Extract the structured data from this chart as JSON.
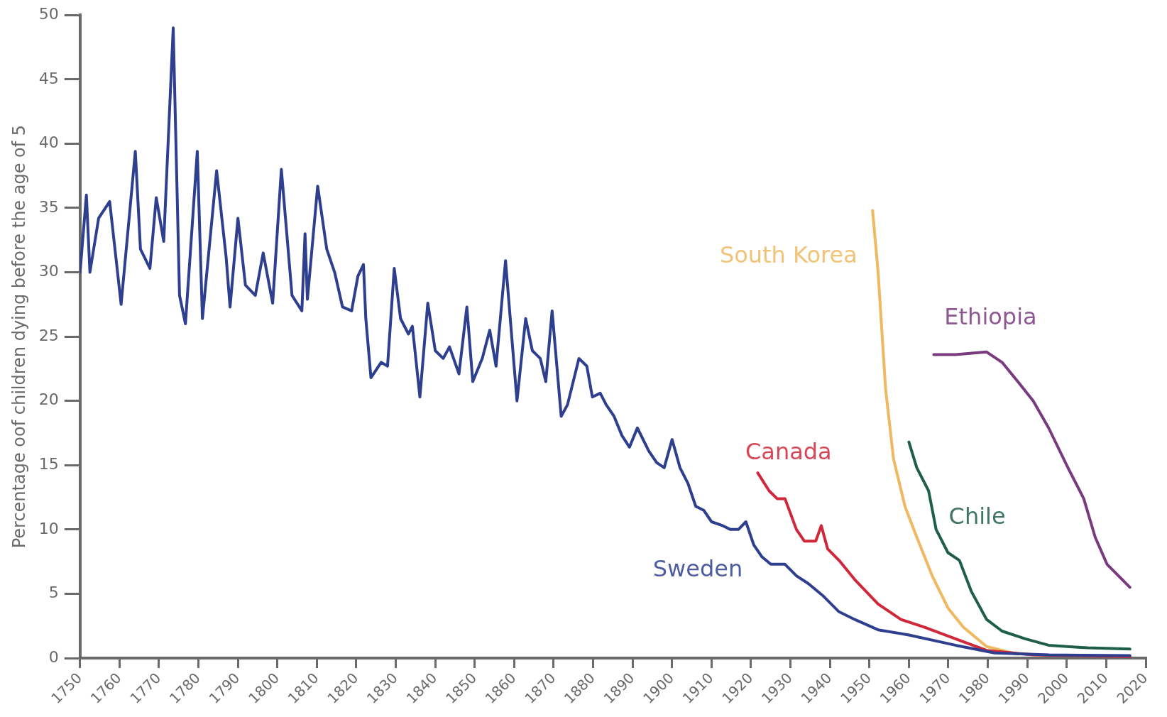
{
  "chart_data": {
    "type": "line",
    "ylabel": "Percentage oof children dying before the age of 5",
    "xlim": [
      1750,
      2020
    ],
    "xticks": [
      1750,
      1760,
      1770,
      1780,
      1790,
      1800,
      1810,
      1820,
      1830,
      1840,
      1850,
      1860,
      1870,
      1880,
      1890,
      1900,
      1910,
      1920,
      1930,
      1940,
      1950,
      1960,
      1970,
      1980,
      1990,
      2000,
      2010,
      2020
    ],
    "ylim": [
      0,
      50
    ],
    "yticks": [
      0,
      5,
      10,
      15,
      20,
      25,
      30,
      35,
      40,
      45,
      50
    ],
    "grid": false,
    "legend": false,
    "marker": "none",
    "line_style": "solid",
    "series": [
      {
        "name": "Sweden",
        "color": "#2e3f8f",
        "x": [
          1750,
          1751.6,
          1752.5,
          1754.7,
          1757.5,
          1760.4,
          1764,
          1765.3,
          1767.7,
          1769.3,
          1771.2,
          1773.6,
          1775.2,
          1776.7,
          1779.7,
          1781,
          1784.6,
          1787,
          1788,
          1790,
          1791.9,
          1794.4,
          1796.4,
          1798.8,
          1801,
          1803.7,
          1806.2,
          1807,
          1807.6,
          1810.2,
          1812.5,
          1814.5,
          1816.5,
          1818.8,
          1820.4,
          1821.8,
          1822.4,
          1823.7,
          1826.3,
          1827.9,
          1829.6,
          1831.2,
          1833.2,
          1834.2,
          1836.1,
          1838.1,
          1840,
          1842,
          1843.6,
          1846,
          1848,
          1849.5,
          1851.9,
          1853.8,
          1855.4,
          1857.8,
          1860.7,
          1862.9,
          1864.6,
          1866.6,
          1868,
          1869.6,
          1871.9,
          1873.5,
          1876.4,
          1878.4,
          1879.8,
          1881.8,
          1883.3,
          1885.3,
          1887.3,
          1889.2,
          1891.2,
          1894.1,
          1896.1,
          1898,
          1900,
          1902,
          1904,
          1906,
          1908,
          1910,
          1912.8,
          1914.8,
          1916.8,
          1918.7,
          1920.7,
          1922.7,
          1925,
          1928.6,
          1931.5,
          1934.5,
          1938.4,
          1942.3,
          1946.3,
          1952.2,
          1960,
          1971.8,
          1981.7,
          1995.4,
          2016
        ],
        "values": [
          30,
          36,
          30,
          34.2,
          35.5,
          27.5,
          39.4,
          31.8,
          30.3,
          35.8,
          32.4,
          49,
          28.2,
          26,
          39.4,
          26.4,
          37.9,
          31.2,
          27.3,
          34.2,
          29,
          28.2,
          31.5,
          27.6,
          38,
          28.2,
          27,
          33,
          27.9,
          36.7,
          31.8,
          30,
          27.3,
          27,
          29.7,
          30.6,
          26.4,
          21.8,
          23,
          22.7,
          30.3,
          26.4,
          25.2,
          25.8,
          20.3,
          27.6,
          23.9,
          23.3,
          24.2,
          22.1,
          27.3,
          21.5,
          23.3,
          25.5,
          22.7,
          30.9,
          20,
          26.4,
          23.9,
          23.3,
          21.5,
          27,
          18.8,
          19.7,
          23.3,
          22.7,
          20.3,
          20.6,
          19.7,
          18.8,
          17.3,
          16.4,
          17.9,
          16.1,
          15.2,
          14.8,
          17,
          14.8,
          13.6,
          11.8,
          11.5,
          10.6,
          10.3,
          10,
          10,
          10.6,
          8.8,
          7.9,
          7.3,
          7.3,
          6.4,
          5.8,
          4.8,
          3.6,
          3,
          2.2,
          1.8,
          1,
          0.4,
          0.25,
          0.2
        ]
      },
      {
        "name": "Canada",
        "color": "#d0283a",
        "x": [
          1921.7,
          1924.6,
          1926.6,
          1928.6,
          1931.5,
          1933.5,
          1936.4,
          1937.8,
          1939.4,
          1942.3,
          1946.3,
          1952.2,
          1958,
          1964,
          1971.8,
          1979.7,
          1991.5,
          2016
        ],
        "values": [
          14.4,
          13,
          12.4,
          12.4,
          10,
          9.1,
          9.1,
          10.3,
          8.5,
          7.6,
          6.1,
          4.2,
          3,
          2.4,
          1.5,
          0.6,
          0.25,
          0.12
        ]
      },
      {
        "name": "South Korea",
        "color": "#f0b860",
        "x": [
          1950.8,
          1952.2,
          1954.1,
          1956.1,
          1959,
          1962,
          1965.9,
          1969.9,
          1973.8,
          1979.7,
          1987.6
        ],
        "values": [
          34.8,
          30,
          20.9,
          15.5,
          11.8,
          9.4,
          6.4,
          3.9,
          2.4,
          0.9,
          0.3
        ]
      },
      {
        "name": "Chile",
        "color": "#1f5e48",
        "x": [
          1960,
          1962,
          1965,
          1966.9,
          1969.9,
          1972.8,
          1975.8,
          1979.7,
          1983.6,
          1989.5,
          1995.4,
          2005.3,
          2016
        ],
        "values": [
          16.8,
          14.8,
          13,
          10,
          8.2,
          7.6,
          5.2,
          3,
          2.1,
          1.5,
          1,
          0.8,
          0.7
        ]
      },
      {
        "name": "Ethiopia",
        "color": "#7a3a7e",
        "x": [
          1966.3,
          1971.8,
          1979.7,
          1983.6,
          1987.6,
          1991.5,
          1995.4,
          2000.3,
          2004.3,
          2007.2,
          2010.2,
          2016
        ],
        "values": [
          23.6,
          23.6,
          23.8,
          23,
          21.5,
          20,
          17.9,
          14.8,
          12.4,
          9.4,
          7.3,
          5.5
        ]
      }
    ]
  }
}
